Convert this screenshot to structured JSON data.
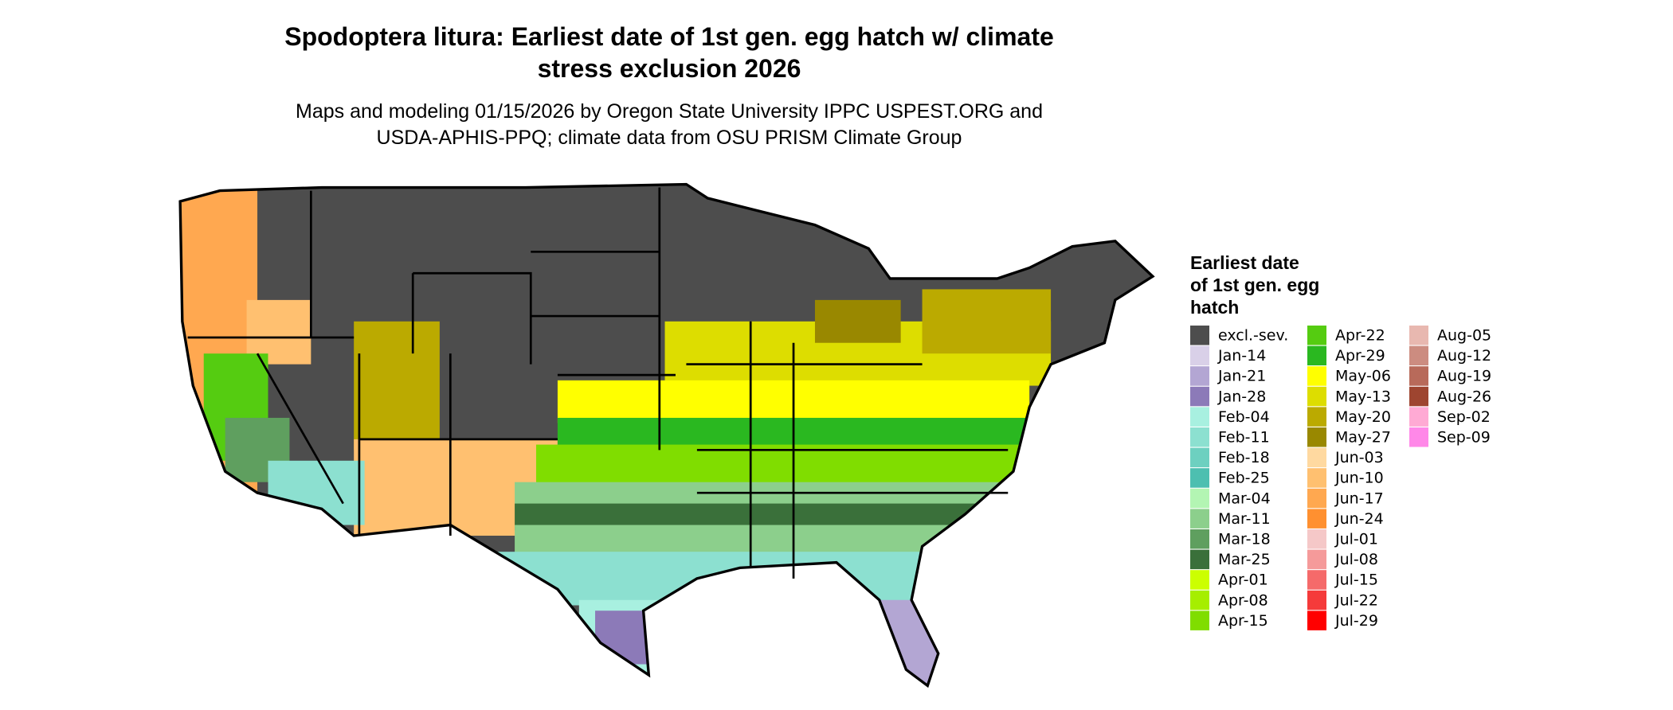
{
  "header": {
    "title_lines": [
      "Spodoptera litura: Earliest date of 1st gen. egg hatch w/ climate",
      "stress exclusion 2026"
    ],
    "subtitle_lines": [
      "Maps and modeling 01/15/2026 by Oregon State University IPPC USPEST.ORG and",
      "USDA-APHIS-PPQ; climate data from OSU PRISM Climate Group"
    ]
  },
  "legend": {
    "title_lines": [
      "Earliest date",
      "of 1st gen. egg",
      "hatch"
    ],
    "items": [
      {
        "label": "excl.-sev.",
        "color": "#4d4d4d"
      },
      {
        "label": "Jan-14",
        "color": "#d9d0e8"
      },
      {
        "label": "Jan-21",
        "color": "#b3a6d3"
      },
      {
        "label": "Jan-28",
        "color": "#8c7ab8"
      },
      {
        "label": "Feb-04",
        "color": "#a8f0e0"
      },
      {
        "label": "Feb-11",
        "color": "#8ce0d0"
      },
      {
        "label": "Feb-18",
        "color": "#6dd0c0"
      },
      {
        "label": "Feb-25",
        "color": "#4dbfb0"
      },
      {
        "label": "Mar-04",
        "color": "#b3f5b3"
      },
      {
        "label": "Mar-11",
        "color": "#8ccf8c"
      },
      {
        "label": "Mar-18",
        "color": "#5f9f5f"
      },
      {
        "label": "Mar-25",
        "color": "#3a703a"
      },
      {
        "label": "Apr-01",
        "color": "#ccff00"
      },
      {
        "label": "Apr-08",
        "color": "#a6ee00"
      },
      {
        "label": "Apr-15",
        "color": "#80dd00"
      },
      {
        "label": "Apr-22",
        "color": "#55cc11"
      },
      {
        "label": "Apr-29",
        "color": "#2ab820"
      },
      {
        "label": "May-06",
        "color": "#ffff00"
      },
      {
        "label": "May-13",
        "color": "#dddd00"
      },
      {
        "label": "May-20",
        "color": "#bbaa00"
      },
      {
        "label": "May-27",
        "color": "#998800"
      },
      {
        "label": "Jun-03",
        "color": "#ffd9a0"
      },
      {
        "label": "Jun-10",
        "color": "#ffc070"
      },
      {
        "label": "Jun-17",
        "color": "#ffa850"
      },
      {
        "label": "Jun-24",
        "color": "#ff9030"
      },
      {
        "label": "Jul-01",
        "color": "#f5c8c8"
      },
      {
        "label": "Jul-08",
        "color": "#f59a9a"
      },
      {
        "label": "Jul-15",
        "color": "#f56a6a"
      },
      {
        "label": "Jul-22",
        "color": "#f53a3a"
      },
      {
        "label": "Jul-29",
        "color": "#ff0000"
      },
      {
        "label": "Aug-05",
        "color": "#e8b8b0"
      },
      {
        "label": "Aug-12",
        "color": "#cc8c80"
      },
      {
        "label": "Aug-19",
        "color": "#b86a5a"
      },
      {
        "label": "Aug-26",
        "color": "#9e4530"
      },
      {
        "label": "Sep-02",
        "color": "#ffaad4"
      },
      {
        "label": "Sep-09",
        "color": "#ff88e8"
      }
    ]
  }
}
